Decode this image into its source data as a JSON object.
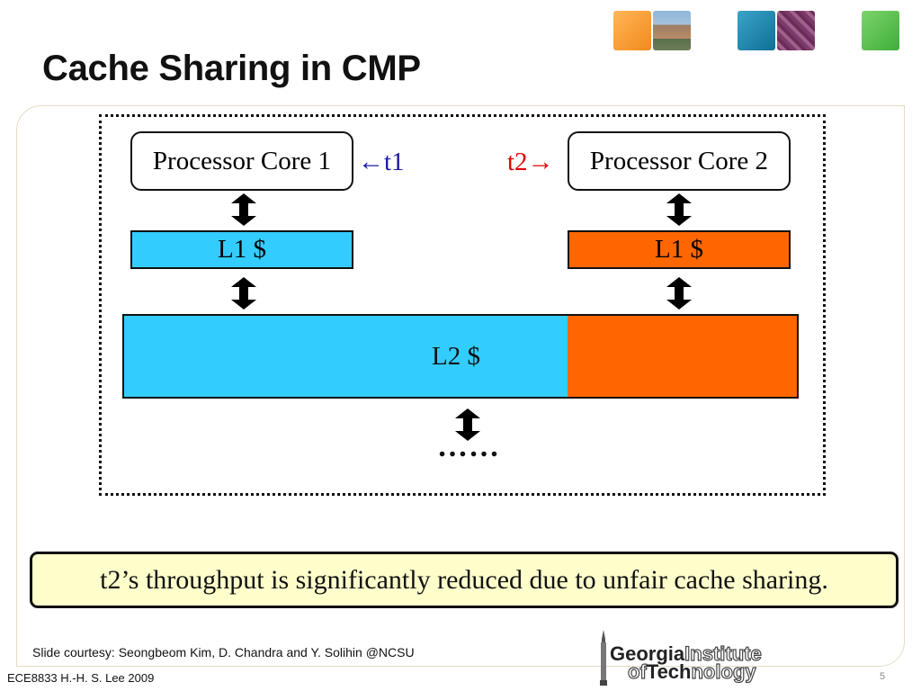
{
  "slide": {
    "title": "Cache Sharing in CMP",
    "courtesy": "Slide courtesy: Seongbeom Kim, D. Chandra and Y. Solihin @NCSU",
    "footer_left": "ECE8833  H.-H. S. Lee  2009",
    "page_number": "5"
  },
  "diagram": {
    "core1_label": "Processor Core 1",
    "core2_label": "Processor Core 2",
    "t1_label": "←t1",
    "t2_label": "t2→",
    "l1_label_a": "L1 $",
    "l1_label_b": "L1 $",
    "l2_label": "L2 $",
    "continuation": "……",
    "colors": {
      "thread1_cache": "#33ccff",
      "thread2_cache": "#ff6600",
      "t1_text": "#1a1aa8",
      "t2_text": "#e00000",
      "callout_bg": "#ffffcc"
    }
  },
  "callout": {
    "text": "t2’s throughput is significantly reduced due to unfair cache sharing."
  },
  "logo": {
    "line1_bold": "Georgia",
    "line1_outline": "Institute",
    "line2_outline": "of",
    "line2_bold": "Tech",
    "line2_outline2": "nology"
  }
}
